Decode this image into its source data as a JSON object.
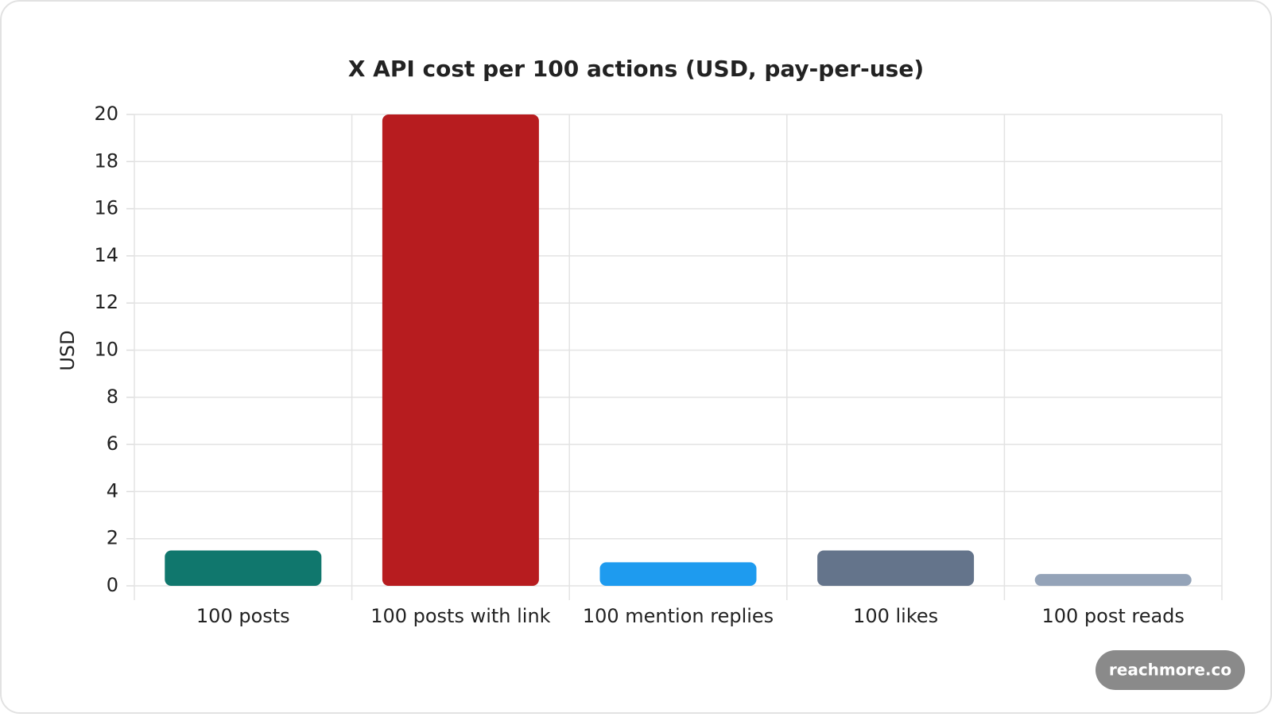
{
  "chart_data": {
    "type": "bar",
    "title": "X API cost per 100 actions (USD, pay-per-use)",
    "y_label": "USD",
    "categories": [
      "100 posts",
      "100 posts with link",
      "100 mention replies",
      "100 likes",
      "100 post reads"
    ],
    "values": [
      1.5,
      20,
      1,
      1.5,
      0.5
    ],
    "colors": [
      "#10776d",
      "#b71c1f",
      "#1e9bef",
      "#64748b",
      "#94a3b8"
    ],
    "ylim": [
      0,
      20
    ],
    "yticks": [
      0,
      2,
      4,
      6,
      8,
      10,
      12,
      14,
      16,
      18,
      20
    ],
    "grid": true
  },
  "watermark": "reachmore.co"
}
